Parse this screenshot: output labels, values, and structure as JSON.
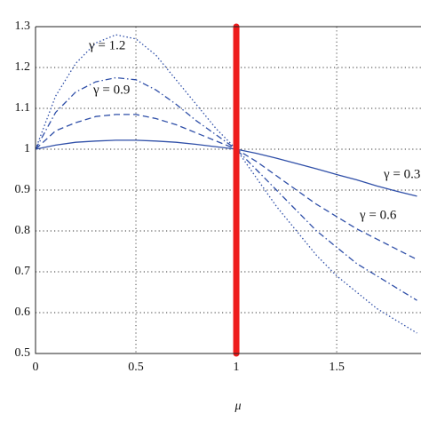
{
  "chart_data": {
    "type": "line",
    "x_label": "μ",
    "x": [
      0,
      0.1,
      0.2,
      0.3,
      0.4,
      0.5,
      0.6,
      0.7,
      0.8,
      0.9,
      1.0,
      1.1,
      1.2,
      1.3,
      1.4,
      1.5,
      1.6,
      1.7,
      1.8,
      1.9
    ],
    "series": [
      {
        "name": "γ = 1.2",
        "color": "#2f4fa8",
        "style": "dotted",
        "values": [
          1.0,
          1.13,
          1.21,
          1.26,
          1.28,
          1.27,
          1.23,
          1.17,
          1.11,
          1.05,
          1.0,
          0.93,
          0.86,
          0.8,
          0.74,
          0.69,
          0.65,
          0.61,
          0.58,
          0.55
        ]
      },
      {
        "name": "γ = 0.9",
        "color": "#2f4fa8",
        "style": "dashdot",
        "values": [
          1.0,
          1.09,
          1.14,
          1.165,
          1.175,
          1.17,
          1.145,
          1.11,
          1.07,
          1.035,
          1.0,
          0.95,
          0.9,
          0.85,
          0.8,
          0.76,
          0.72,
          0.69,
          0.66,
          0.63
        ]
      },
      {
        "name": "γ = 0.6",
        "color": "#2f4fa8",
        "style": "dashed",
        "values": [
          1.0,
          1.045,
          1.065,
          1.08,
          1.085,
          1.085,
          1.075,
          1.06,
          1.04,
          1.02,
          1.0,
          0.97,
          0.935,
          0.9,
          0.865,
          0.835,
          0.805,
          0.78,
          0.755,
          0.73
        ]
      },
      {
        "name": "γ = 0.3",
        "color": "#2f4fa8",
        "style": "solid",
        "values": [
          1.0,
          1.01,
          1.017,
          1.02,
          1.022,
          1.022,
          1.02,
          1.017,
          1.012,
          1.006,
          1.0,
          0.99,
          0.978,
          0.965,
          0.952,
          0.938,
          0.925,
          0.91,
          0.897,
          0.885
        ]
      }
    ],
    "vline": {
      "x": 1,
      "color": "#ee1c1c"
    },
    "xlim": [
      0,
      1.92
    ],
    "ylim": [
      0.5,
      1.3
    ],
    "xticks": [
      0,
      0.5,
      1,
      1.5
    ],
    "yticks": [
      0.5,
      0.6,
      0.7,
      0.8,
      0.9,
      1,
      1.1,
      1.2,
      1.3
    ],
    "grid": true
  }
}
